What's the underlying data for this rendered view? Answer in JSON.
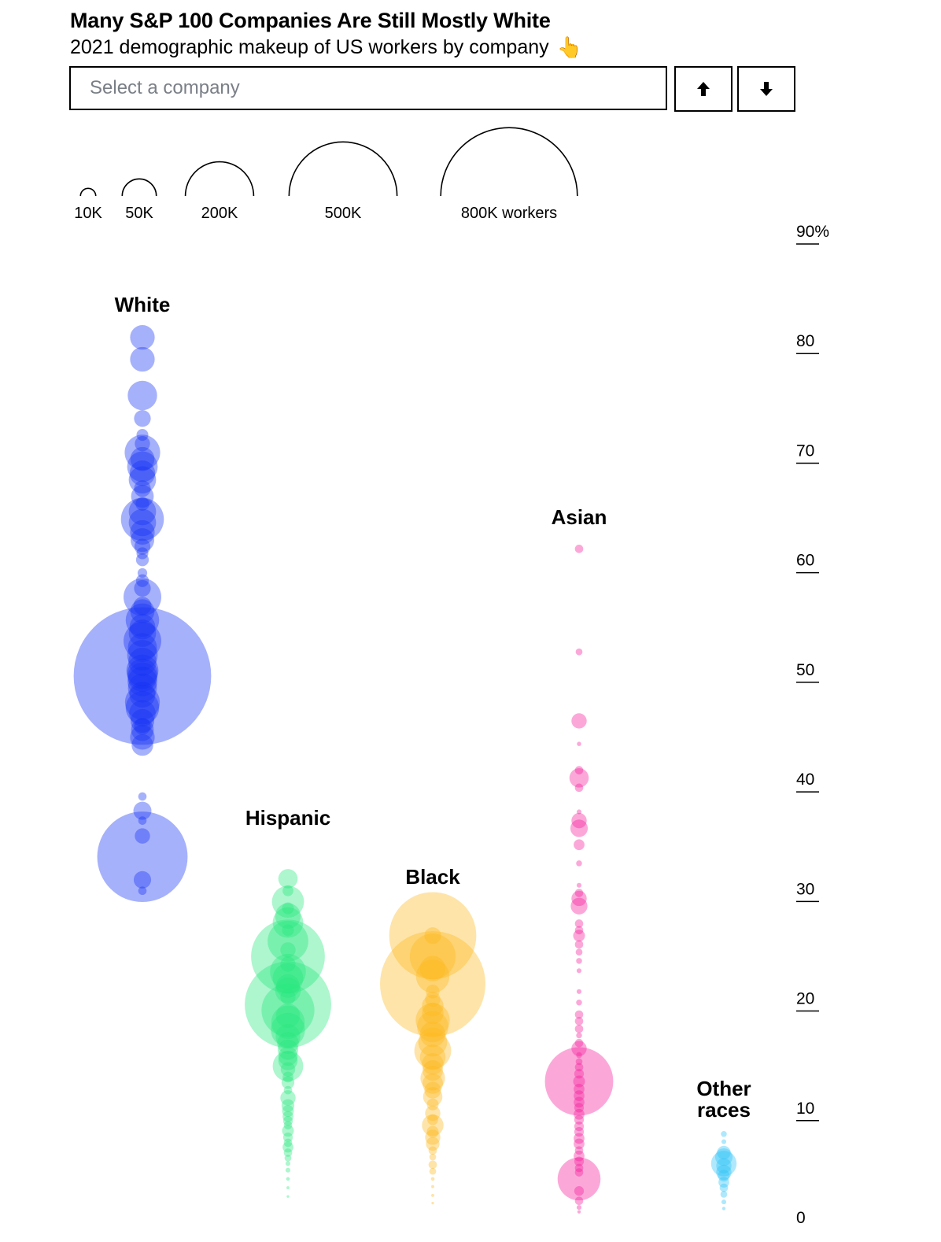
{
  "header": {
    "title": "Many S&P 100 Companies Are Still Mostly White",
    "subtitle": "2021 demographic makeup of US workers by company",
    "pointer_icon": "pointing-hand-icon"
  },
  "controls": {
    "search_placeholder": "Select a company",
    "prev_icon": "arrow-up-icon",
    "next_icon": "arrow-down-icon"
  },
  "chart_data": {
    "type": "scatter",
    "title": "Many S&P 100 Companies Are Still Mostly White",
    "subtitle": "2021 demographic makeup of US workers by company",
    "y_axis": {
      "min": 0,
      "max": 90,
      "ticks": [
        90,
        80,
        70,
        60,
        50,
        40,
        30,
        20,
        10,
        0
      ],
      "top_tick_suffix": "%",
      "position": "right"
    },
    "size_legend": {
      "values": [
        10000,
        50000,
        200000,
        500000,
        800000
      ],
      "labels": [
        "10K",
        "50K",
        "200K",
        "500K",
        "800K workers"
      ]
    },
    "series": [
      {
        "name": "White",
        "color": "#1432f5",
        "points": [
          [
            80.4,
            26000
          ],
          [
            78.4,
            26000
          ],
          [
            75.1,
            37000
          ],
          [
            73.0,
            12000
          ],
          [
            71.5,
            6000
          ],
          [
            70.7,
            10000
          ],
          [
            69.9,
            54000
          ],
          [
            69.3,
            25000
          ],
          [
            68.6,
            40000
          ],
          [
            68.0,
            28000
          ],
          [
            67.4,
            32000
          ],
          [
            66.6,
            12000
          ],
          [
            65.9,
            22000
          ],
          [
            65.2,
            8000
          ],
          [
            64.5,
            32000
          ],
          [
            63.8,
            79000
          ],
          [
            63.5,
            32000
          ],
          [
            62.6,
            26000
          ],
          [
            61.9,
            24000
          ],
          [
            61.3,
            11000
          ],
          [
            60.7,
            6000
          ],
          [
            60.1,
            7000
          ],
          [
            58.9,
            4000
          ],
          [
            58.2,
            7000
          ],
          [
            57.5,
            12000
          ],
          [
            56.7,
            61000
          ],
          [
            55.9,
            14000
          ],
          [
            55.4,
            25000
          ],
          [
            54.6,
            48000
          ],
          [
            54.0,
            28000
          ],
          [
            53.4,
            32000
          ],
          [
            52.7,
            61000
          ],
          [
            52.1,
            36000
          ],
          [
            51.4,
            40000
          ],
          [
            50.8,
            34000
          ],
          [
            50.0,
            44000
          ],
          [
            49.7,
            40000
          ],
          [
            49.4,
            37000
          ],
          [
            49.0,
            38000
          ],
          [
            48.4,
            36000
          ],
          [
            47.8,
            29000
          ],
          [
            47.1,
            52000
          ],
          [
            46.6,
            48000
          ],
          [
            46.1,
            30000
          ],
          [
            45.4,
            24000
          ],
          [
            44.9,
            12000
          ],
          [
            44.6,
            22000
          ],
          [
            43.9,
            26000
          ],
          [
            43.2,
            20000
          ],
          [
            49.5,
            810000
          ],
          [
            38.5,
            3000
          ],
          [
            37.2,
            14000
          ],
          [
            36.3,
            3000
          ],
          [
            34.9,
            10000
          ],
          [
            33.0,
            350000
          ],
          [
            30.9,
            13000
          ],
          [
            29.9,
            3000
          ]
        ]
      },
      {
        "name": "Hispanic",
        "color": "#27e87f",
        "points": [
          [
            31.0,
            16000
          ],
          [
            29.9,
            5000
          ],
          [
            28.9,
            44000
          ],
          [
            28.3,
            6000
          ],
          [
            27.6,
            28000
          ],
          [
            27.0,
            40000
          ],
          [
            26.3,
            6000
          ],
          [
            25.3,
            71000
          ],
          [
            24.5,
            10000
          ],
          [
            23.9,
            233000
          ],
          [
            23.2,
            10000
          ],
          [
            22.5,
            55000
          ],
          [
            21.9,
            40000
          ],
          [
            21.2,
            24000
          ],
          [
            20.8,
            28000
          ],
          [
            20.2,
            10000
          ],
          [
            19.5,
            320000
          ],
          [
            19.0,
            120000
          ],
          [
            18.5,
            25000
          ],
          [
            17.9,
            48000
          ],
          [
            17.2,
            50000
          ],
          [
            16.6,
            26000
          ],
          [
            16.0,
            20000
          ],
          [
            15.4,
            18000
          ],
          [
            14.8,
            16000
          ],
          [
            14.4,
            16000
          ],
          [
            13.9,
            40000
          ],
          [
            13.6,
            9000
          ],
          [
            12.9,
            5000
          ],
          [
            12.4,
            7000
          ],
          [
            11.7,
            3000
          ],
          [
            11.0,
            10000
          ],
          [
            10.3,
            7000
          ],
          [
            9.8,
            6000
          ],
          [
            9.3,
            5000
          ],
          [
            8.9,
            4000
          ],
          [
            8.5,
            3000
          ],
          [
            8.0,
            6000
          ],
          [
            7.4,
            4000
          ],
          [
            6.9,
            3000
          ],
          [
            6.5,
            5000
          ],
          [
            6.0,
            3000
          ],
          [
            5.5,
            2000
          ],
          [
            5.0,
            1000
          ],
          [
            4.4,
            1000
          ],
          [
            3.6,
            600
          ],
          [
            2.8,
            400
          ],
          [
            2.0,
            300
          ]
        ]
      },
      {
        "name": "Black",
        "color": "#fcb91c",
        "points": [
          [
            25.8,
            325000
          ],
          [
            25.8,
            12000
          ],
          [
            23.9,
            90000
          ],
          [
            22.8,
            28000
          ],
          [
            22.1,
            48000
          ],
          [
            21.4,
            476000
          ],
          [
            20.7,
            8000
          ],
          [
            20.0,
            10000
          ],
          [
            19.4,
            20000
          ],
          [
            18.7,
            20000
          ],
          [
            18.1,
            50000
          ],
          [
            17.5,
            42000
          ],
          [
            16.8,
            28000
          ],
          [
            16.1,
            36000
          ],
          [
            15.3,
            58000
          ],
          [
            14.7,
            28000
          ],
          [
            14.1,
            20000
          ],
          [
            13.5,
            18000
          ],
          [
            12.8,
            26000
          ],
          [
            12.3,
            18000
          ],
          [
            11.7,
            12000
          ],
          [
            11.1,
            16000
          ],
          [
            10.4,
            6000
          ],
          [
            9.6,
            10000
          ],
          [
            9.0,
            5000
          ],
          [
            8.5,
            20000
          ],
          [
            7.9,
            6000
          ],
          [
            7.4,
            10000
          ],
          [
            6.8,
            8000
          ],
          [
            6.2,
            3000
          ],
          [
            5.6,
            2000
          ],
          [
            4.9,
            3000
          ],
          [
            4.3,
            2000
          ],
          [
            3.6,
            600
          ],
          [
            2.9,
            400
          ],
          [
            2.1,
            400
          ],
          [
            1.4,
            300
          ]
        ]
      },
      {
        "name": "Asian",
        "color": "#f5199b",
        "points": [
          [
            61.1,
            3000
          ],
          [
            51.7,
            2000
          ],
          [
            45.4,
            10000
          ],
          [
            43.3,
            800
          ],
          [
            40.9,
            3000
          ],
          [
            40.2,
            16000
          ],
          [
            39.3,
            3000
          ],
          [
            37.1,
            1000
          ],
          [
            36.3,
            10000
          ],
          [
            35.6,
            13000
          ],
          [
            34.1,
            5000
          ],
          [
            32.4,
            1500
          ],
          [
            30.4,
            1000
          ],
          [
            29.7,
            3000
          ],
          [
            29.2,
            10000
          ],
          [
            28.5,
            12000
          ],
          [
            26.9,
            3000
          ],
          [
            26.3,
            3000
          ],
          [
            25.8,
            6000
          ],
          [
            25.0,
            3000
          ],
          [
            24.3,
            2000
          ],
          [
            23.5,
            1500
          ],
          [
            22.6,
            1000
          ],
          [
            20.7,
            1000
          ],
          [
            19.7,
            1500
          ],
          [
            18.6,
            3000
          ],
          [
            18.0,
            3000
          ],
          [
            17.3,
            3000
          ],
          [
            16.7,
            1500
          ],
          [
            16.0,
            3000
          ],
          [
            15.5,
            10000
          ],
          [
            14.9,
            1500
          ],
          [
            14.3,
            2000
          ],
          [
            13.8,
            3000
          ],
          [
            13.2,
            4000
          ],
          [
            12.5,
            200000
          ],
          [
            12.5,
            6000
          ],
          [
            11.8,
            5000
          ],
          [
            11.2,
            5000
          ],
          [
            10.6,
            5000
          ],
          [
            10.1,
            4000
          ],
          [
            9.5,
            5000
          ],
          [
            9.0,
            4000
          ],
          [
            8.4,
            4000
          ],
          [
            7.9,
            4000
          ],
          [
            7.3,
            5000
          ],
          [
            6.8,
            5000
          ],
          [
            6.2,
            3000
          ],
          [
            5.7,
            5000
          ],
          [
            5.2,
            4000
          ],
          [
            4.6,
            3000
          ],
          [
            4.2,
            3000
          ],
          [
            3.6,
            79000
          ],
          [
            2.5,
            4000
          ],
          [
            1.6,
            3000
          ],
          [
            1.0,
            1000
          ],
          [
            0.6,
            500
          ]
        ]
      },
      {
        "name": "Other races",
        "color": "#2ec2f7",
        "points": [
          [
            7.7,
            1500
          ],
          [
            7.0,
            1000
          ],
          [
            6.0,
            8000
          ],
          [
            5.6,
            13000
          ],
          [
            5.0,
            28000
          ],
          [
            4.8,
            10000
          ],
          [
            4.2,
            10000
          ],
          [
            3.9,
            6000
          ],
          [
            3.3,
            5000
          ],
          [
            2.8,
            3000
          ],
          [
            2.2,
            2000
          ],
          [
            1.5,
            1000
          ],
          [
            0.9,
            500
          ]
        ]
      }
    ]
  }
}
